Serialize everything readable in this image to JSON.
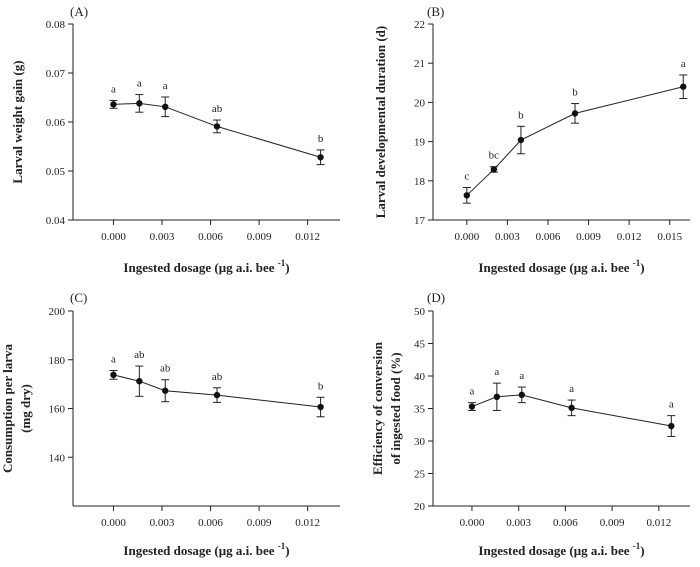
{
  "chart_data": [
    {
      "type": "line",
      "panel_label": "(A)",
      "xlabel_main": "Ingested dosage",
      "xlabel_unit": "(μg a.i. bee",
      "xlabel_sup": "-1",
      "xlabel_close": ")",
      "ylabel": "Larval weight gain (g)",
      "xlim": [
        -0.0025,
        0.014
      ],
      "ylim": [
        0.04,
        0.08
      ],
      "xticks": [
        0.0,
        0.003,
        0.006,
        0.009,
        0.012
      ],
      "xtick_labels": [
        "0.000",
        "0.003",
        "0.006",
        "0.009",
        "0.012"
      ],
      "yticks": [
        0.04,
        0.05,
        0.06,
        0.07,
        0.08
      ],
      "ytick_labels": [
        "0.04",
        "0.05",
        "0.06",
        "0.07",
        "0.08"
      ],
      "x": [
        0.0,
        0.0016,
        0.0032,
        0.0064,
        0.0128
      ],
      "y": [
        0.0636,
        0.0638,
        0.0631,
        0.0591,
        0.0528
      ],
      "err": [
        0.0008,
        0.0018,
        0.002,
        0.0013,
        0.0015
      ],
      "sig_labels": [
        "a",
        "a",
        "a",
        "ab",
        "b"
      ]
    },
    {
      "type": "line",
      "panel_label": "(B)",
      "xlabel_main": "Ingested dosage",
      "xlabel_unit": "(μg a.i. bee",
      "xlabel_sup": "-1",
      "xlabel_close": ")",
      "ylabel": "Larval developmental duration (d)",
      "xlim": [
        -0.0025,
        0.0165
      ],
      "ylim": [
        17,
        22
      ],
      "xticks": [
        0.0,
        0.003,
        0.006,
        0.009,
        0.012,
        0.015
      ],
      "xtick_labels": [
        "0.000",
        "0.003",
        "0.006",
        "0.009",
        "0.012",
        "0.015"
      ],
      "yticks": [
        17,
        18,
        19,
        20,
        21,
        22
      ],
      "ytick_labels": [
        "17",
        "18",
        "19",
        "20",
        "21",
        "22"
      ],
      "x": [
        0.0,
        0.002,
        0.004,
        0.008,
        0.016
      ],
      "y": [
        17.63,
        18.29,
        19.04,
        19.72,
        20.4
      ],
      "err": [
        0.2,
        0.07,
        0.35,
        0.25,
        0.3
      ],
      "sig_labels": [
        "c",
        "bc",
        "b",
        "b",
        "a"
      ]
    },
    {
      "type": "line",
      "panel_label": "(C)",
      "xlabel_main": "Ingested dosage",
      "xlabel_unit": "(μg a.i. bee",
      "xlabel_sup": "-1",
      "xlabel_close": ")",
      "ylabel": "Consumption per larva",
      "ylabel2": "(mg dry)",
      "xlim": [
        -0.0025,
        0.014
      ],
      "ylim": [
        120,
        200
      ],
      "xticks": [
        0.0,
        0.003,
        0.006,
        0.009,
        0.012
      ],
      "xtick_labels": [
        "0.000",
        "0.003",
        "0.006",
        "0.009",
        "0.012"
      ],
      "yticks": [
        140,
        160,
        180,
        200
      ],
      "ytick_labels": [
        "140",
        "160",
        "180",
        "200"
      ],
      "x": [
        0.0,
        0.0016,
        0.0032,
        0.0064,
        0.0128
      ],
      "y": [
        173.8,
        171.2,
        167.3,
        165.5,
        160.6
      ],
      "err": [
        1.8,
        6.2,
        4.5,
        3.0,
        4.0
      ],
      "sig_labels": [
        "a",
        "ab",
        "ab",
        "ab",
        "b"
      ]
    },
    {
      "type": "line",
      "panel_label": "(D)",
      "xlabel_main": "Ingested dosage",
      "xlabel_unit": "(μg a.i. bee",
      "xlabel_sup": "-1",
      "xlabel_close": ")",
      "ylabel": "Efficiency of conversion",
      "ylabel2": "of ingested food (%)",
      "xlim": [
        -0.0025,
        0.014
      ],
      "ylim": [
        20,
        50
      ],
      "xticks": [
        0.0,
        0.003,
        0.006,
        0.009,
        0.012
      ],
      "xtick_labels": [
        "0.000",
        "0.003",
        "0.006",
        "0.009",
        "0.012"
      ],
      "yticks": [
        20,
        25,
        30,
        35,
        40,
        45,
        50
      ],
      "ytick_labels": [
        "20",
        "25",
        "30",
        "35",
        "40",
        "45",
        "50"
      ],
      "x": [
        0.0,
        0.0016,
        0.0032,
        0.0064,
        0.0128
      ],
      "y": [
        35.3,
        36.8,
        37.1,
        35.1,
        32.3
      ],
      "err": [
        0.6,
        2.1,
        1.2,
        1.2,
        1.6
      ],
      "sig_labels": [
        "a",
        "a",
        "a",
        "a",
        "a"
      ]
    }
  ]
}
